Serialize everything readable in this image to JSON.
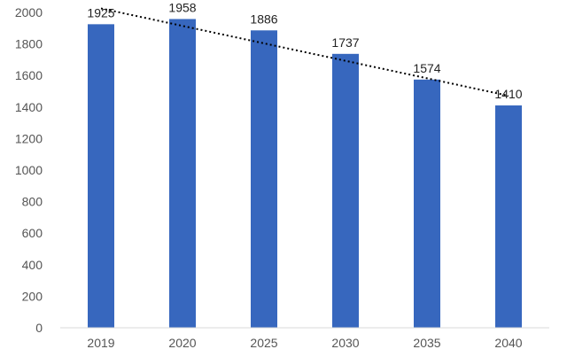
{
  "chart_data": {
    "type": "bar",
    "title": "",
    "xlabel": "",
    "ylabel": "",
    "categories": [
      "2019",
      "2020",
      "2025",
      "2030",
      "2035",
      "2040"
    ],
    "series": [
      {
        "values": [
          1925,
          1958,
          1886,
          1737,
          1574,
          1410
        ]
      }
    ],
    "data_labels": [
      "1925",
      "1958",
      "1886",
      "1737",
      "1574",
      "1410"
    ],
    "ylim": [
      0,
      2000
    ],
    "yticks": [
      0,
      200,
      400,
      600,
      800,
      1000,
      1200,
      1400,
      1600,
      1800,
      2000
    ],
    "trendline": {
      "type": "linear",
      "style": "dotted",
      "color": "#000000"
    },
    "grid": false,
    "legend": "none",
    "colors": {
      "bar": "#3767BE",
      "axis": "#D9D9D9"
    }
  }
}
